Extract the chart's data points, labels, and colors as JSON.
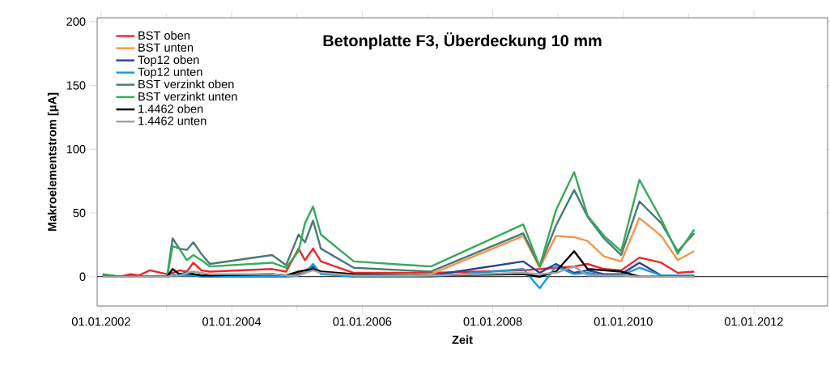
{
  "chart_data": {
    "type": "line",
    "title": "Betonplatte F3, Überdeckung 10 mm",
    "xlabel": "Zeit",
    "ylabel": "Makroelementstrom [μA]",
    "x": [
      "2002-01-10",
      "2002-04-15",
      "2002-06-15",
      "2002-08-01",
      "2002-10-01",
      "2003-01-05",
      "2003-02-05",
      "2003-03-15",
      "2003-04-25",
      "2003-06-01",
      "2003-07-15",
      "2003-09-01",
      "2004-08-15",
      "2004-11-01",
      "2005-01-10",
      "2005-02-15",
      "2005-04-01",
      "2005-05-15",
      "2005-11-15",
      "2007-01-20",
      "2008-06-20",
      "2008-09-20",
      "2008-12-20",
      "2009-04-01",
      "2009-06-15",
      "2009-09-15",
      "2009-12-20",
      "2010-04-01",
      "2010-08-01",
      "2010-11-01",
      "2011-02-01"
    ],
    "series": [
      {
        "name": "BST oben",
        "color": "#e8292a",
        "values": [
          1,
          0,
          2,
          1,
          5,
          2,
          3,
          5,
          4,
          11,
          5,
          4,
          6,
          4,
          22,
          13,
          22,
          12,
          3,
          3,
          5,
          6,
          7,
          8,
          10,
          6,
          5,
          15,
          11,
          3,
          4
        ]
      },
      {
        "name": "BST unten",
        "color": "#f7944a",
        "values": [
          0,
          0,
          0,
          0,
          0,
          0,
          1,
          1,
          1,
          2,
          1,
          1,
          2,
          1,
          3,
          5,
          8,
          4,
          2,
          2,
          32,
          7,
          32,
          31,
          28,
          16,
          12,
          46,
          32,
          13,
          20
        ]
      },
      {
        "name": "Top12 oben",
        "color": "#2e3f96",
        "values": [
          null,
          null,
          null,
          null,
          0,
          0,
          1,
          1,
          1,
          2,
          1,
          1,
          1,
          1,
          2,
          3,
          8,
          3,
          1,
          1,
          12,
          3,
          10,
          3,
          5,
          2,
          2,
          11,
          1,
          1,
          1
        ]
      },
      {
        "name": "Top12 unten",
        "color": "#1a9ad6",
        "values": [
          null,
          null,
          null,
          null,
          0,
          0,
          2,
          1,
          1,
          1,
          0,
          0,
          0,
          0,
          1,
          3,
          10,
          2,
          0,
          0,
          6,
          -9,
          8,
          2,
          3,
          1,
          1,
          7,
          1,
          1,
          1
        ]
      },
      {
        "name": "BST verzinkt oben",
        "color": "#4a7a78",
        "values": [
          2,
          0,
          0,
          0,
          0,
          0,
          30,
          22,
          21,
          27,
          18,
          10,
          17,
          9,
          33,
          27,
          44,
          22,
          7,
          4,
          34,
          8,
          40,
          68,
          47,
          30,
          17,
          59,
          42,
          20,
          34
        ]
      },
      {
        "name": "BST verzinkt unten",
        "color": "#3aaa5c",
        "values": [
          2,
          0,
          0,
          0,
          0,
          0,
          24,
          22,
          13,
          17,
          13,
          8,
          11,
          7,
          20,
          42,
          55,
          33,
          12,
          8,
          41,
          8,
          52,
          82,
          48,
          32,
          20,
          76,
          45,
          18,
          37
        ]
      },
      {
        "name": "1.4462 oben",
        "color": "#000000",
        "values": [
          0,
          0,
          0,
          0,
          0,
          0,
          6,
          2,
          3,
          2,
          1,
          1,
          2,
          1,
          4,
          5,
          6,
          4,
          2,
          1,
          2,
          0,
          4,
          20,
          6,
          5,
          4,
          0,
          0,
          0,
          0
        ]
      },
      {
        "name": "1.4462 unten",
        "color": "#a0a0a0",
        "values": [
          0,
          0,
          0,
          0,
          0,
          0,
          1,
          1,
          3,
          4,
          3,
          2,
          2,
          1,
          1,
          3,
          5,
          3,
          1,
          1,
          3,
          2,
          3,
          8,
          1,
          1,
          1,
          0,
          0,
          0,
          0
        ]
      }
    ],
    "xlim": [
      "2001-12-10",
      "2013-02-17"
    ],
    "ylim": [
      -23,
      203
    ],
    "xticks": [
      {
        "value": "2002-01-01",
        "label": "01.01.2002"
      },
      {
        "value": "2004-01-01",
        "label": "01.01.2004"
      },
      {
        "value": "2006-01-01",
        "label": "01.01.2006"
      },
      {
        "value": "2008-01-01",
        "label": "01.01.2008"
      },
      {
        "value": "2010-01-01",
        "label": "01.01.2010"
      },
      {
        "value": "2012-01-01",
        "label": "01.01.2012"
      }
    ],
    "yticks": [
      0,
      50,
      100,
      150,
      200
    ],
    "ref_lines": [
      {
        "axis": "y",
        "value": 0,
        "color": "#000000"
      }
    ],
    "legend": "top left",
    "grid": false,
    "marker": "none",
    "line_style": "solid"
  }
}
